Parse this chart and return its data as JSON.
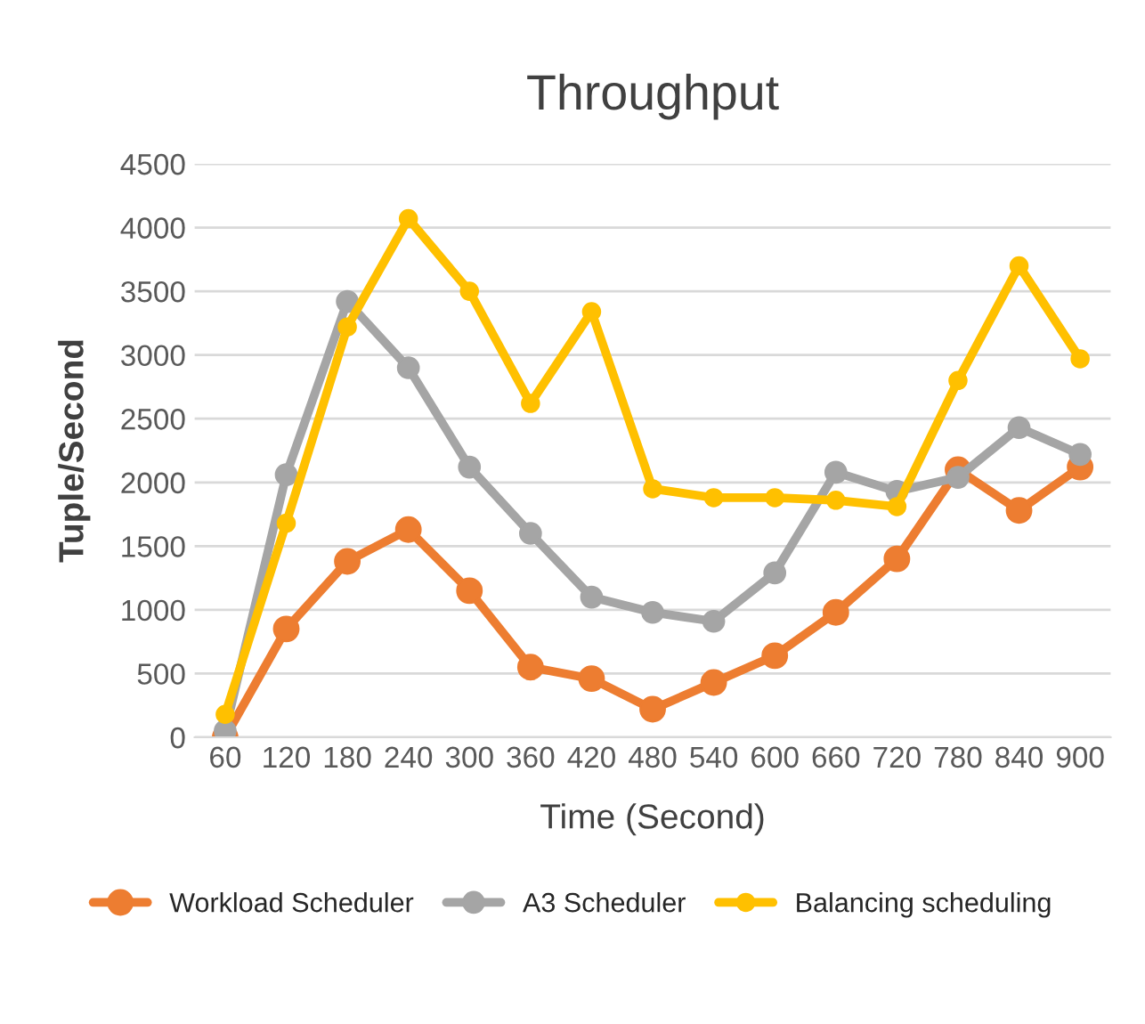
{
  "chart_data": {
    "type": "line",
    "title": "Throughput",
    "xlabel": "Time (Second)",
    "ylabel": "Tuple/Second",
    "categories": [
      "60",
      "120",
      "180",
      "240",
      "300",
      "360",
      "420",
      "480",
      "540",
      "600",
      "660",
      "720",
      "780",
      "840",
      "900"
    ],
    "series": [
      {
        "name": "Workload Scheduler",
        "color": "#ed7d31",
        "values": [
          0,
          850,
          1380,
          1630,
          1150,
          550,
          460,
          220,
          430,
          640,
          980,
          1400,
          2100,
          1780,
          2120
        ]
      },
      {
        "name": "A3 Scheduler",
        "color": "#a5a5a5",
        "values": [
          50,
          2060,
          3420,
          2900,
          2120,
          1600,
          1100,
          980,
          910,
          1290,
          2080,
          1930,
          2040,
          2430,
          2220
        ]
      },
      {
        "name": "Balancing scheduling",
        "color": "#ffc000",
        "values": [
          180,
          1680,
          3220,
          4070,
          3500,
          2620,
          3340,
          1950,
          1880,
          1880,
          1860,
          1810,
          2800,
          3700,
          2970
        ]
      }
    ],
    "ylim": [
      0,
      4500
    ],
    "yticks": [
      0,
      500,
      1000,
      1500,
      2000,
      2500,
      3000,
      3500,
      4000,
      4500
    ],
    "grid": "y",
    "legend": "bottom",
    "marker": "circle",
    "line_style": "solid"
  }
}
